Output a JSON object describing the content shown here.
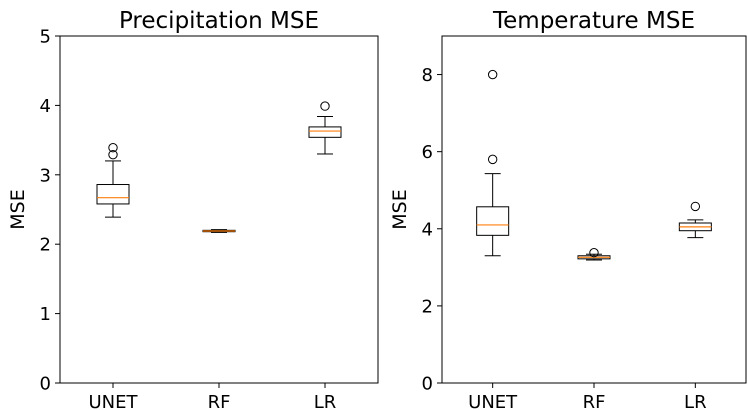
{
  "chart_data": [
    {
      "type": "box",
      "title": "Precipitation MSE",
      "ylabel": "MSE",
      "xlabel": "",
      "categories": [
        "UNET",
        "RF",
        "LR"
      ],
      "ylim": [
        0,
        5
      ],
      "yticks": [
        0,
        1,
        2,
        3,
        4,
        5
      ],
      "grid": false,
      "boxes": [
        {
          "label": "UNET",
          "whisker_low": 2.39,
          "q1": 2.58,
          "median": 2.67,
          "q3": 2.86,
          "whisker_high": 3.2,
          "outliers": [
            3.29,
            3.39
          ]
        },
        {
          "label": "RF",
          "whisker_low": 2.17,
          "q1": 2.18,
          "median": 2.19,
          "q3": 2.2,
          "whisker_high": 2.21,
          "outliers": []
        },
        {
          "label": "LR",
          "whisker_low": 3.3,
          "q1": 3.54,
          "median": 3.63,
          "q3": 3.69,
          "whisker_high": 3.84,
          "outliers": [
            3.99
          ]
        }
      ],
      "colors": {
        "box": "#000000",
        "median": "#ff7f0e"
      }
    },
    {
      "type": "box",
      "title": "Temperature MSE",
      "ylabel": "MSE",
      "xlabel": "",
      "categories": [
        "UNET",
        "RF",
        "LR"
      ],
      "ylim": [
        0,
        9
      ],
      "yticks": [
        0,
        2,
        4,
        6,
        8
      ],
      "grid": false,
      "boxes": [
        {
          "label": "UNET",
          "whisker_low": 3.3,
          "q1": 3.83,
          "median": 4.1,
          "q3": 4.57,
          "whisker_high": 5.43,
          "outliers": [
            5.8,
            8.0
          ]
        },
        {
          "label": "RF",
          "whisker_low": 3.19,
          "q1": 3.22,
          "median": 3.26,
          "q3": 3.3,
          "whisker_high": 3.34,
          "outliers": [
            3.38
          ]
        },
        {
          "label": "LR",
          "whisker_low": 3.77,
          "q1": 3.95,
          "median": 4.05,
          "q3": 4.15,
          "whisker_high": 4.23,
          "outliers": [
            4.58
          ]
        }
      ],
      "colors": {
        "box": "#000000",
        "median": "#ff7f0e"
      }
    }
  ]
}
